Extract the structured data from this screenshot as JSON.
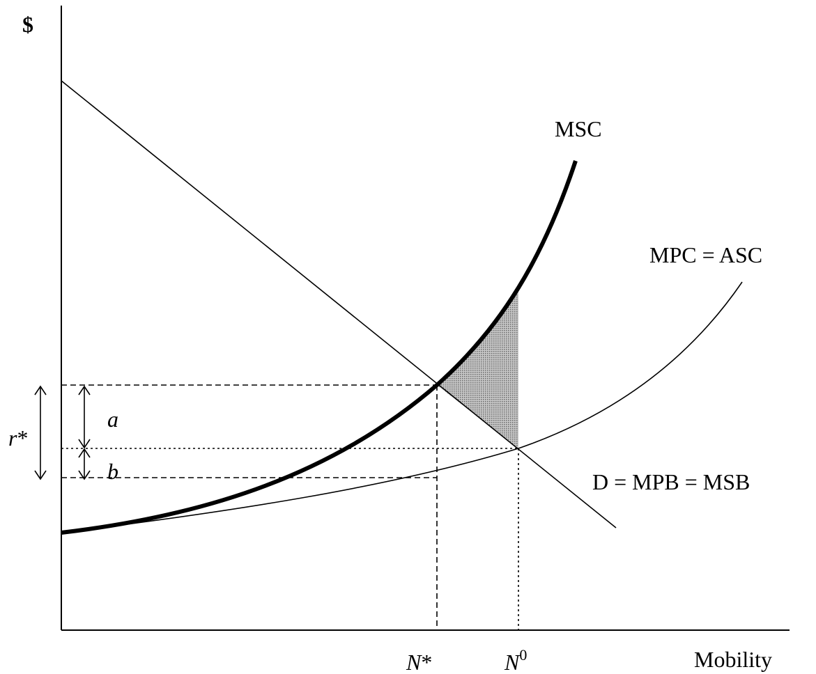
{
  "diagram": {
    "axes": {
      "y_label": "$",
      "x_label": "Mobility"
    },
    "curves": {
      "msc": "MSC",
      "mpc": "MPC = ASC",
      "demand": "D = MPB = MSB"
    },
    "points": {
      "n_star": {
        "base": "N",
        "mark": "*"
      },
      "n_zero": {
        "base": "N",
        "mark": "0"
      }
    },
    "annotations": {
      "r_star": {
        "base": "r",
        "mark": "*"
      },
      "a": "a",
      "b": "b"
    },
    "colors": {
      "ink": "#000000",
      "deadweight_fill": "#9a9a9a"
    }
  }
}
